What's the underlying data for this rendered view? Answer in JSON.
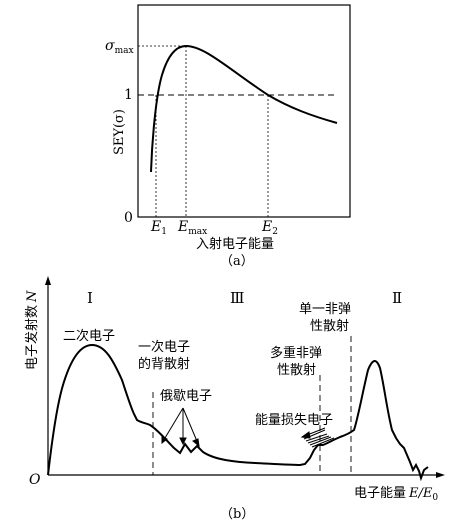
{
  "panel_a": {
    "y_axis_label": "SEY(σ)",
    "sigma_max": "σ",
    "sigma_max_sub": "max",
    "tick_one": "1",
    "tick_zero": "0",
    "e1": "E",
    "e1_sub": "1",
    "emax": "E",
    "emax_sub": "max",
    "e2": "E",
    "e2_sub": "2",
    "x_axis_label": "入射电子能量",
    "caption": "（a）"
  },
  "panel_b": {
    "y_axis_label": "电子发射数",
    "y_axis_symbol": "N",
    "origin": "O",
    "region_1": "Ⅰ",
    "region_3": "Ⅲ",
    "region_2": "Ⅱ",
    "label_secondary": "二次电子",
    "label_backscatter_line1": "一次电子",
    "label_backscatter_line2": "的背散射",
    "label_auger": "俄歇电子",
    "label_single_inelastic_line1": "单一非弹",
    "label_single_inelastic_line2": "性散射",
    "label_multi_inelastic_line1": "多重非弹",
    "label_multi_inelastic_line2": "性散射",
    "label_energy_loss": "能量损失电子",
    "x_axis_label": "电子能量",
    "x_axis_symbol": "E/E",
    "x_axis_symbol_sub": "0",
    "caption": "（b）"
  }
}
